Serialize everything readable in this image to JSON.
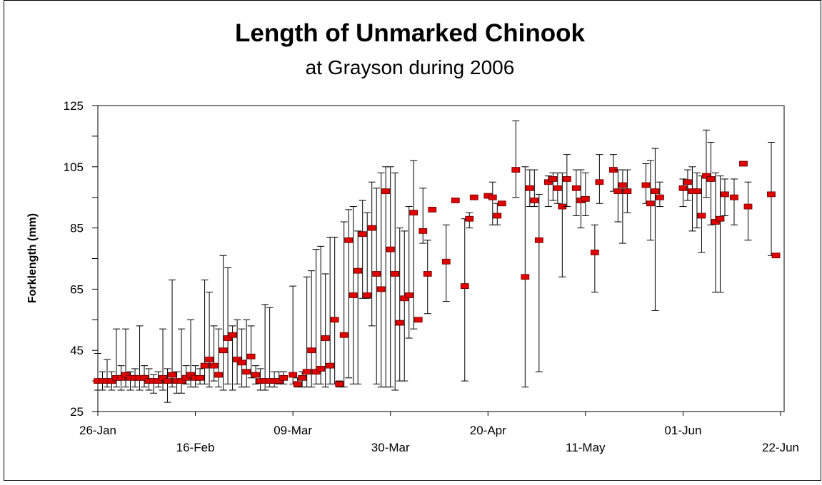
{
  "chart_data": {
    "type": "errorbar",
    "title": "Length of Unmarked Chinook",
    "subtitle": "at Grayson during 2006",
    "ylabel": "Forklength (mm)",
    "color": "#e00000",
    "x": [
      "26-Jan",
      "27-Jan",
      "28-Jan",
      "29-Jan",
      "30-Jan",
      "31-Jan",
      "01-Feb",
      "02-Feb",
      "03-Feb",
      "04-Feb",
      "05-Feb",
      "06-Feb",
      "07-Feb",
      "08-Feb",
      "09-Feb",
      "10-Feb",
      "11-Feb",
      "12-Feb",
      "13-Feb",
      "14-Feb",
      "15-Feb",
      "16-Feb",
      "17-Feb",
      "18-Feb",
      "19-Feb",
      "20-Feb",
      "21-Feb",
      "22-Feb",
      "23-Feb",
      "24-Feb",
      "25-Feb",
      "26-Feb",
      "27-Feb",
      "28-Feb",
      "01-Mar",
      "02-Mar",
      "03-Mar",
      "04-Mar",
      "05-Mar",
      "06-Mar",
      "07-Mar",
      "09-Mar",
      "10-Mar",
      "11-Mar",
      "12-Mar",
      "13-Mar",
      "14-Mar",
      "15-Mar",
      "16-Mar",
      "17-Mar",
      "18-Mar",
      "19-Mar",
      "20-Mar",
      "21-Mar",
      "22-Mar",
      "23-Mar",
      "24-Mar",
      "25-Mar",
      "26-Mar",
      "27-Mar",
      "28-Mar",
      "29-Mar",
      "30-Mar",
      "31-Mar",
      "01-Apr",
      "02-Apr",
      "03-Apr",
      "04-Apr",
      "05-Apr",
      "06-Apr",
      "07-Apr",
      "08-Apr",
      "11-Apr",
      "13-Apr",
      "15-Apr",
      "16-Apr",
      "17-Apr",
      "20-Apr",
      "21-Apr",
      "22-Apr",
      "23-Apr",
      "26-Apr",
      "28-Apr",
      "29-Apr",
      "30-Apr",
      "01-May",
      "03-May",
      "04-May",
      "05-May",
      "06-May",
      "07-May",
      "09-May",
      "10-May",
      "11-May",
      "13-May",
      "14-May",
      "17-May",
      "18-May",
      "19-May",
      "20-May",
      "24-May",
      "25-May",
      "26-May",
      "27-May",
      "01-Jun",
      "02-Jun",
      "03-Jun",
      "04-Jun",
      "05-Jun",
      "06-Jun",
      "07-Jun",
      "08-Jun",
      "09-Jun",
      "10-Jun",
      "12-Jun",
      "14-Jun",
      "15-Jun",
      "20-Jun",
      "21-Jun"
    ],
    "values": [
      35,
      35,
      35,
      35,
      36,
      36,
      37,
      36,
      36,
      36,
      36,
      35,
      35,
      35,
      36,
      35,
      37,
      35,
      35,
      36,
      37,
      36,
      36,
      40,
      42,
      40,
      37,
      45,
      49,
      50,
      42,
      41,
      38,
      43,
      37,
      35,
      35,
      35,
      35,
      35,
      36,
      37,
      34,
      36,
      38,
      45,
      38,
      39,
      49,
      40,
      55,
      34,
      50,
      81,
      63,
      71,
      83,
      63,
      85,
      70,
      65,
      97,
      78,
      70,
      54,
      62,
      63,
      90,
      55,
      84,
      70,
      91,
      74,
      94,
      66,
      88,
      95,
      95.5,
      95,
      89,
      93,
      104,
      69,
      98,
      94,
      81,
      100,
      101,
      98,
      92,
      101,
      98,
      94,
      94.5,
      77,
      100,
      104,
      97,
      99,
      97,
      99,
      93,
      97,
      95,
      98,
      100,
      97,
      97,
      89,
      102,
      101,
      87,
      88,
      96,
      95,
      106,
      92,
      96,
      76
    ],
    "low": [
      32,
      32,
      33,
      32,
      33,
      32,
      33,
      32,
      33,
      32,
      33,
      32,
      31,
      33,
      32,
      28,
      33,
      31,
      31,
      34,
      33,
      33,
      34,
      34,
      33,
      35,
      33,
      32,
      34,
      32,
      34,
      33,
      33,
      36,
      34,
      32,
      32,
      33,
      33,
      34,
      34,
      34,
      33,
      33,
      33,
      33,
      34,
      34,
      33,
      34,
      34,
      33,
      33,
      36,
      34,
      34,
      62,
      62,
      53,
      34,
      33,
      33,
      33,
      32,
      35,
      35,
      49,
      52,
      null,
      80,
      57,
      null,
      61,
      null,
      35,
      85,
      null,
      null,
      86,
      86,
      null,
      95,
      33,
      92,
      92,
      38,
      92,
      94,
      93,
      69,
      92,
      89,
      85,
      89,
      64,
      93,
      97,
      87,
      80,
      90,
      93,
      81,
      58,
      92,
      92,
      94,
      84,
      85,
      77,
      95,
      86,
      64,
      64,
      89,
      86,
      null,
      81,
      76,
      null
    ],
    "high": [
      44,
      38,
      42,
      38,
      52,
      40,
      52,
      38,
      39,
      53,
      40,
      39,
      37,
      38,
      52,
      39,
      68,
      38,
      52,
      40,
      55,
      40,
      39,
      68,
      64,
      53,
      52,
      76,
      72,
      53,
      55,
      52,
      55,
      53,
      40,
      39,
      60,
      59,
      38,
      38,
      38,
      66,
      36,
      38,
      69,
      71,
      78,
      79,
      70,
      82,
      82,
      35,
      87,
      91,
      92,
      84,
      94,
      90,
      100,
      98,
      103,
      105,
      105,
      103,
      85,
      84,
      92,
      107,
      null,
      98,
      81,
      null,
      86,
      null,
      88,
      90,
      null,
      null,
      100,
      93,
      null,
      120,
      105,
      104,
      104,
      96,
      102,
      103,
      103,
      103,
      109,
      104,
      104,
      103,
      86,
      109,
      109,
      104,
      104,
      104,
      106,
      107,
      111,
      100,
      101,
      104,
      105,
      103,
      102,
      117,
      113,
      103,
      102,
      101,
      101,
      null,
      100,
      113,
      null
    ],
    "xlim": [
      "26-Jan",
      "22-Jun"
    ],
    "xticks": [
      "26-Jan",
      "16-Feb",
      "09-Mar",
      "30-Mar",
      "20-Apr",
      "11-May",
      "01-Jun",
      "22-Jun"
    ],
    "ylim": [
      25,
      125
    ],
    "yticks": [
      25,
      45,
      65,
      85,
      105,
      125
    ],
    "yticks_minor": [
      35,
      55,
      75,
      95,
      115
    ],
    "grid": false
  }
}
